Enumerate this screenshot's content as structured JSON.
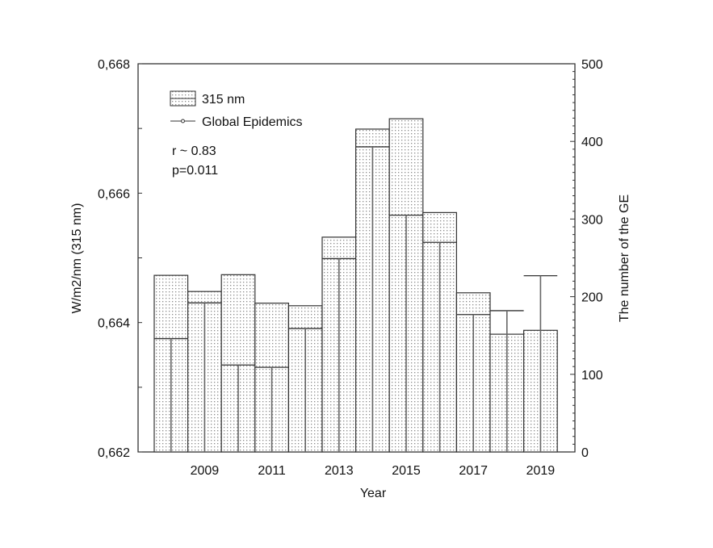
{
  "chart_data": {
    "type": "bar",
    "title": "",
    "xlabel": "Year",
    "ylabel": "W/m2/nm (315 nm)",
    "y2label": "The number of the GE",
    "categories": [
      "2008",
      "2009",
      "2010",
      "2011",
      "2012",
      "2013",
      "2014",
      "2015",
      "2016",
      "2017",
      "2018",
      "2019"
    ],
    "x_tick_labels": [
      "2009",
      "2011",
      "2013",
      "2015",
      "2017",
      "2019"
    ],
    "ylim": [
      0.662,
      0.668
    ],
    "y_ticks": [
      "0,662",
      "0,664",
      "0,666",
      "0,668"
    ],
    "y2lim": [
      0,
      500
    ],
    "y2_ticks": [
      "0",
      "100",
      "200",
      "300",
      "400",
      "500"
    ],
    "series": [
      {
        "name": "315 nm",
        "type": "bar",
        "axis": "left",
        "values": [
          0.66473,
          0.66448,
          0.66474,
          0.6643,
          0.66426,
          0.66532,
          0.66699,
          0.66715,
          0.6657,
          0.66446,
          0.66382,
          0.66388
        ]
      },
      {
        "name": "Global Epidemics",
        "type": "line",
        "axis": "right",
        "values": [
          146,
          192,
          112,
          109,
          159,
          249,
          393,
          305,
          270,
          177,
          182,
          227
        ]
      }
    ],
    "annotations": [
      "r ~ 0.83",
      "p=0.011"
    ],
    "legend": {
      "position": "top-left",
      "entries": [
        "315 nm",
        "Global Epidemics"
      ]
    },
    "grid": false
  },
  "legend": {
    "bar_label": "315 nm",
    "line_label": "Global Epidemics"
  },
  "stats": {
    "r": "r ~ 0.83",
    "p": "p=0.011"
  },
  "axes": {
    "x_title": "Year",
    "y_title": "W/m2/nm (315 nm)",
    "y2_title": "The number of the GE"
  }
}
